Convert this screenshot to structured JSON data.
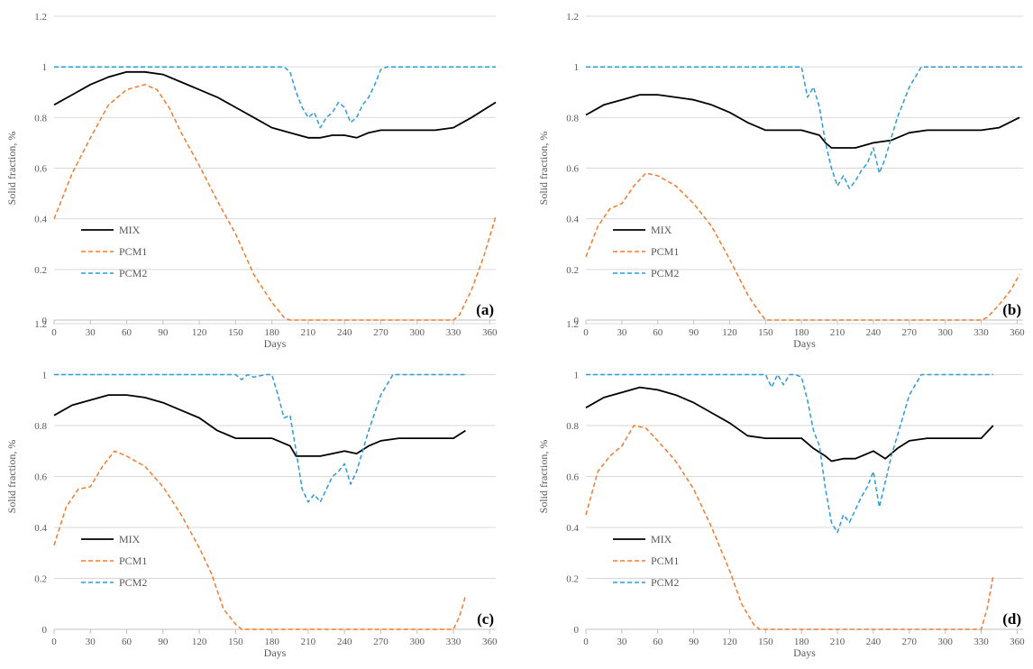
{
  "chart_data": [
    {
      "type": "line",
      "panel_label": "(a)",
      "xlabel": "Days",
      "ylabel": "Solid fraction, %",
      "xlim": [
        0,
        365
      ],
      "ylim": [
        0,
        1.2
      ],
      "xticks": [
        0,
        30,
        60,
        90,
        120,
        150,
        180,
        210,
        240,
        270,
        300,
        330,
        360
      ],
      "yticks": [
        0,
        0.2,
        0.4,
        0.6,
        0.8,
        1,
        1.2
      ],
      "grid": "horizontal",
      "legend": "lower-left",
      "series": [
        {
          "name": "MIX",
          "color": "#000000",
          "dash": "solid",
          "x": [
            0,
            15,
            30,
            45,
            60,
            75,
            90,
            105,
            120,
            135,
            150,
            165,
            180,
            195,
            210,
            220,
            230,
            240,
            250,
            260,
            270,
            285,
            300,
            315,
            330,
            345,
            365
          ],
          "y": [
            0.85,
            0.89,
            0.93,
            0.96,
            0.98,
            0.98,
            0.97,
            0.94,
            0.91,
            0.88,
            0.84,
            0.8,
            0.76,
            0.74,
            0.72,
            0.72,
            0.73,
            0.73,
            0.72,
            0.74,
            0.75,
            0.75,
            0.75,
            0.75,
            0.76,
            0.8,
            0.86
          ]
        },
        {
          "name": "PCM1",
          "color": "#ED7D31",
          "dash": "dashed",
          "x": [
            0,
            15,
            30,
            45,
            60,
            75,
            85,
            95,
            105,
            120,
            135,
            150,
            165,
            180,
            190,
            195,
            330,
            335,
            345,
            355,
            365
          ],
          "y": [
            0.4,
            0.58,
            0.72,
            0.85,
            0.91,
            0.93,
            0.91,
            0.84,
            0.74,
            0.61,
            0.47,
            0.34,
            0.18,
            0.07,
            0.01,
            0.0,
            0.0,
            0.02,
            0.12,
            0.25,
            0.41
          ]
        },
        {
          "name": "PCM2",
          "color": "#2E9BD6",
          "dash": "dashed",
          "x": [
            0,
            190,
            195,
            200,
            205,
            210,
            215,
            220,
            225,
            230,
            235,
            240,
            245,
            250,
            255,
            260,
            265,
            270,
            275,
            365
          ],
          "y": [
            1.0,
            1.0,
            0.98,
            0.9,
            0.84,
            0.8,
            0.82,
            0.76,
            0.8,
            0.82,
            0.86,
            0.84,
            0.78,
            0.8,
            0.85,
            0.88,
            0.93,
            0.99,
            1.0,
            1.0
          ]
        }
      ]
    },
    {
      "type": "line",
      "panel_label": "(b)",
      "xlabel": "Days",
      "ylabel": "Solid fraction, %",
      "xlim": [
        0,
        365
      ],
      "ylim": [
        0,
        1.2
      ],
      "xticks": [
        0,
        30,
        60,
        90,
        120,
        150,
        180,
        210,
        240,
        270,
        300,
        330,
        360
      ],
      "yticks": [
        0,
        0.2,
        0.4,
        0.6,
        0.8,
        1,
        1.2
      ],
      "grid": "horizontal",
      "legend": "lower-left",
      "series": [
        {
          "name": "MIX",
          "color": "#000000",
          "dash": "solid",
          "x": [
            0,
            15,
            30,
            45,
            60,
            75,
            90,
            105,
            120,
            135,
            150,
            165,
            180,
            195,
            200,
            205,
            215,
            225,
            240,
            255,
            270,
            285,
            300,
            315,
            330,
            345,
            362
          ],
          "y": [
            0.81,
            0.85,
            0.87,
            0.89,
            0.89,
            0.88,
            0.87,
            0.85,
            0.82,
            0.78,
            0.75,
            0.75,
            0.75,
            0.73,
            0.7,
            0.68,
            0.68,
            0.68,
            0.7,
            0.71,
            0.74,
            0.75,
            0.75,
            0.75,
            0.75,
            0.76,
            0.8
          ]
        },
        {
          "name": "PCM1",
          "color": "#ED7D31",
          "dash": "dashed",
          "x": [
            0,
            10,
            20,
            30,
            40,
            50,
            60,
            75,
            90,
            105,
            120,
            135,
            145,
            150,
            155,
            330,
            335,
            345,
            355,
            362
          ],
          "y": [
            0.25,
            0.37,
            0.44,
            0.46,
            0.53,
            0.58,
            0.57,
            0.53,
            0.46,
            0.37,
            0.24,
            0.1,
            0.03,
            0.0,
            0.0,
            0.0,
            0.01,
            0.06,
            0.12,
            0.18
          ]
        },
        {
          "name": "PCM2",
          "color": "#2E9BD6",
          "dash": "dashed",
          "x": [
            0,
            180,
            185,
            190,
            195,
            200,
            205,
            210,
            215,
            220,
            225,
            230,
            235,
            240,
            245,
            250,
            255,
            260,
            270,
            280,
            365
          ],
          "y": [
            1.0,
            1.0,
            0.88,
            0.92,
            0.84,
            0.7,
            0.6,
            0.53,
            0.57,
            0.52,
            0.55,
            0.59,
            0.62,
            0.68,
            0.58,
            0.64,
            0.72,
            0.8,
            0.92,
            1.0,
            1.0
          ]
        }
      ]
    },
    {
      "type": "line",
      "panel_label": "(c)",
      "xlabel": "Days",
      "ylabel": "Solid fraction, %",
      "xlim": [
        0,
        365
      ],
      "ylim": [
        0,
        1.2
      ],
      "xticks": [
        0,
        30,
        60,
        90,
        120,
        150,
        180,
        210,
        240,
        270,
        300,
        330,
        360
      ],
      "yticks": [
        0,
        0.2,
        0.4,
        0.6,
        0.8,
        1,
        1.2
      ],
      "grid": "horizontal",
      "legend": "lower-left",
      "series": [
        {
          "name": "MIX",
          "color": "#000000",
          "dash": "solid",
          "x": [
            0,
            15,
            30,
            45,
            60,
            75,
            90,
            105,
            120,
            135,
            150,
            165,
            180,
            195,
            200,
            210,
            220,
            230,
            240,
            250,
            260,
            270,
            285,
            300,
            315,
            330,
            340
          ],
          "y": [
            0.84,
            0.88,
            0.9,
            0.92,
            0.92,
            0.91,
            0.89,
            0.86,
            0.83,
            0.78,
            0.75,
            0.75,
            0.75,
            0.72,
            0.68,
            0.68,
            0.68,
            0.69,
            0.7,
            0.69,
            0.72,
            0.74,
            0.75,
            0.75,
            0.75,
            0.75,
            0.78
          ]
        },
        {
          "name": "PCM1",
          "color": "#ED7D31",
          "dash": "dashed",
          "x": [
            0,
            10,
            20,
            30,
            40,
            50,
            60,
            75,
            90,
            105,
            120,
            130,
            140,
            150,
            155,
            330,
            335,
            340
          ],
          "y": [
            0.33,
            0.48,
            0.55,
            0.56,
            0.64,
            0.7,
            0.68,
            0.64,
            0.56,
            0.45,
            0.32,
            0.22,
            0.08,
            0.02,
            0.0,
            0.0,
            0.05,
            0.13
          ]
        },
        {
          "name": "PCM2",
          "color": "#2E9BD6",
          "dash": "dashed",
          "x": [
            0,
            150,
            155,
            160,
            165,
            175,
            180,
            185,
            190,
            195,
            200,
            205,
            210,
            215,
            220,
            225,
            230,
            235,
            240,
            245,
            250,
            255,
            260,
            270,
            280,
            340
          ],
          "y": [
            1.0,
            1.0,
            0.98,
            1.0,
            0.99,
            1.0,
            1.0,
            0.92,
            0.83,
            0.84,
            0.7,
            0.55,
            0.5,
            0.53,
            0.5,
            0.55,
            0.6,
            0.62,
            0.65,
            0.57,
            0.62,
            0.7,
            0.78,
            0.92,
            1.0,
            1.0
          ]
        }
      ]
    },
    {
      "type": "line",
      "panel_label": "(d)",
      "xlabel": "Days",
      "ylabel": "Solid fraction, %",
      "xlim": [
        0,
        365
      ],
      "ylim": [
        0,
        1.2
      ],
      "xticks": [
        0,
        30,
        60,
        90,
        120,
        150,
        180,
        210,
        240,
        270,
        300,
        330,
        360
      ],
      "yticks": [
        0,
        0.2,
        0.4,
        0.6,
        0.8,
        1,
        1.2
      ],
      "grid": "horizontal",
      "legend": "lower-left",
      "series": [
        {
          "name": "MIX",
          "color": "#000000",
          "dash": "solid",
          "x": [
            0,
            15,
            30,
            45,
            60,
            75,
            90,
            105,
            120,
            135,
            150,
            165,
            180,
            190,
            200,
            205,
            215,
            225,
            240,
            250,
            260,
            270,
            285,
            300,
            315,
            330,
            340
          ],
          "y": [
            0.87,
            0.91,
            0.93,
            0.95,
            0.94,
            0.92,
            0.89,
            0.85,
            0.81,
            0.76,
            0.75,
            0.75,
            0.75,
            0.71,
            0.68,
            0.66,
            0.67,
            0.67,
            0.7,
            0.67,
            0.71,
            0.74,
            0.75,
            0.75,
            0.75,
            0.75,
            0.8
          ]
        },
        {
          "name": "PCM1",
          "color": "#ED7D31",
          "dash": "dashed",
          "x": [
            0,
            10,
            20,
            30,
            40,
            50,
            60,
            75,
            90,
            105,
            120,
            130,
            140,
            145,
            330,
            335,
            340
          ],
          "y": [
            0.45,
            0.62,
            0.68,
            0.72,
            0.8,
            0.79,
            0.74,
            0.66,
            0.55,
            0.4,
            0.23,
            0.1,
            0.02,
            0.0,
            0.0,
            0.08,
            0.21
          ]
        },
        {
          "name": "PCM2",
          "color": "#2E9BD6",
          "dash": "dashed",
          "x": [
            0,
            150,
            155,
            160,
            165,
            170,
            175,
            180,
            185,
            190,
            195,
            200,
            205,
            210,
            215,
            220,
            225,
            230,
            235,
            240,
            245,
            250,
            255,
            260,
            270,
            280,
            340
          ],
          "y": [
            1.0,
            1.0,
            0.95,
            1.0,
            0.96,
            1.0,
            1.0,
            0.99,
            0.9,
            0.78,
            0.72,
            0.55,
            0.42,
            0.38,
            0.45,
            0.42,
            0.47,
            0.52,
            0.56,
            0.62,
            0.48,
            0.58,
            0.68,
            0.76,
            0.92,
            1.0,
            1.0
          ]
        }
      ]
    }
  ]
}
